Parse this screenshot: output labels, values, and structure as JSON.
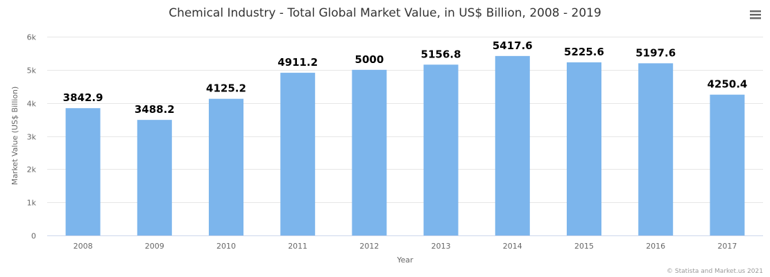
{
  "chart_data": {
    "type": "bar",
    "title": "Chemical Industry - Total Global Market Value, in US$ Billion, 2008 - 2019",
    "xlabel": "Year",
    "ylabel": "Market Value (US$ Billion)",
    "categories": [
      "2008",
      "2009",
      "2010",
      "2011",
      "2012",
      "2013",
      "2014",
      "2015",
      "2016",
      "2017"
    ],
    "values": [
      3842.9,
      3488.2,
      4125.2,
      4911.2,
      5000,
      5156.8,
      5417.6,
      5225.6,
      5197.6,
      4250.4
    ],
    "data_labels": [
      "3842.9",
      "3488.2",
      "4125.2",
      "4911.2",
      "5000",
      "5156.8",
      "5417.6",
      "5225.6",
      "5197.6",
      "4250.4"
    ],
    "ylim": [
      0,
      6000
    ],
    "yticks": [
      0,
      1000,
      2000,
      3000,
      4000,
      5000,
      6000
    ],
    "ytick_labels": [
      "0",
      "1k",
      "2k",
      "3k",
      "4k",
      "5k",
      "6k"
    ],
    "grid": true,
    "legend": "none",
    "bar_color": "#7cb5ec",
    "credits": "© Statista and Market.us 2021"
  },
  "menu_icon": "hamburger-menu-icon"
}
